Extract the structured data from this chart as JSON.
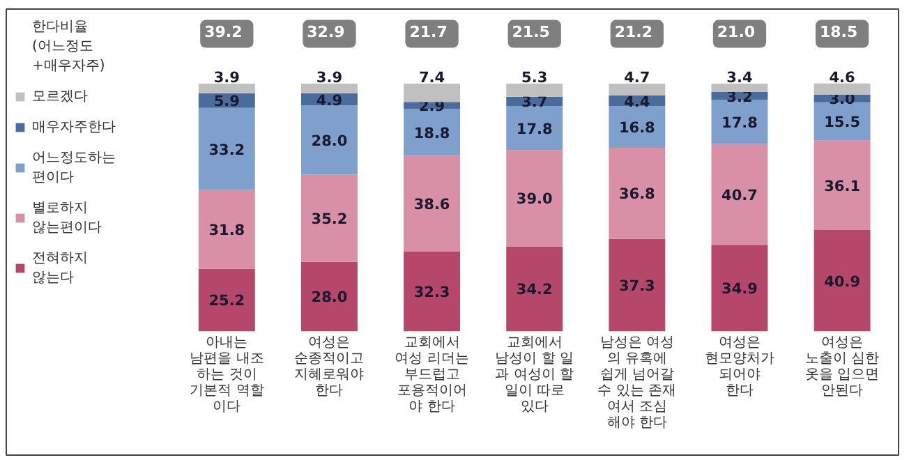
{
  "chart_data": {
    "type": "bar",
    "stacked": true,
    "legend": "left",
    "categories": [
      "아내는\n남편을 내조\n하는 것이\n기본적 역할\n이다",
      "여성은\n순종적이고\n지혜로워야\n한다",
      "교회에서\n여성 리더는\n부드럽고\n포용적이어\n야 한다",
      "교회에서\n남성이 할 일\n과 여성이 할\n일이 따로\n있다",
      "남성은 여성\n의 유혹에\n쉽게 넘어갈\n수 있는 존재\n여서 조심\n해야 한다",
      "여성은\n현모양처가\n되어야\n한다",
      "여성은\n노출이 심한\n옷을 입으면\n안된다"
    ],
    "series": [
      {
        "name": "전혀하지\n않는다",
        "color": "#b5476a",
        "values": [
          25.2,
          28.0,
          32.3,
          34.2,
          37.3,
          34.9,
          40.9
        ],
        "value_labels": [
          "25.2",
          "28.0",
          "32.3",
          "34.2",
          "37.3",
          "34.9",
          "40.9"
        ]
      },
      {
        "name": "별로하지\n않는편이다",
        "color": "#d98fa6",
        "values": [
          31.8,
          35.2,
          38.6,
          39.0,
          36.8,
          40.7,
          36.1
        ],
        "value_labels": [
          "31.8",
          "35.2",
          "38.6",
          "39.0",
          "36.8",
          "40.7",
          "36.1"
        ]
      },
      {
        "name": "어느정도하는\n편이다",
        "color": "#7f9fcc",
        "values": [
          33.2,
          28.0,
          18.8,
          17.8,
          16.8,
          17.8,
          15.5
        ],
        "value_labels": [
          "33.2",
          "28.0",
          "18.8",
          "17.8",
          "16.8",
          "17.8",
          "15.5"
        ]
      },
      {
        "name": "매우자주한다",
        "color": "#4a6c9c",
        "values": [
          5.9,
          4.9,
          2.9,
          3.7,
          4.4,
          3.2,
          3.0
        ],
        "value_labels": [
          "5.9",
          "4.9",
          "2.9",
          "3.7",
          "4.4",
          "3.2",
          "3.0"
        ]
      },
      {
        "name": "모르겠다",
        "color": "#c0c0c0",
        "values": [
          3.9,
          3.9,
          7.4,
          5.3,
          4.7,
          3.4,
          4.6
        ],
        "value_labels": [
          "3.9",
          "3.9",
          "7.4",
          "5.3",
          "4.7",
          "3.4",
          "4.6"
        ]
      }
    ],
    "annotations": [
      "한다비율\n(어느정도\n+매우자주)",
      "39.2",
      "32.9",
      "21.7",
      "21.5",
      "21.2",
      "21.0",
      "18.5"
    ]
  }
}
